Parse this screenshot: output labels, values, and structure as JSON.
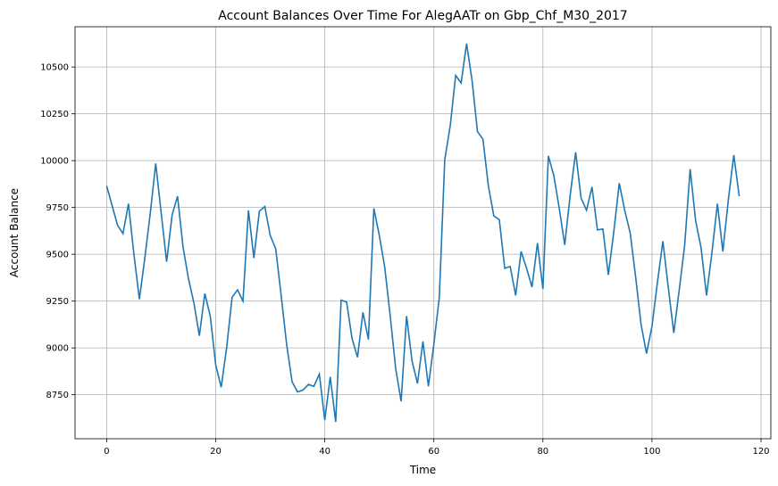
{
  "chart_data": {
    "type": "line",
    "title": "Account Balances Over Time For AlegAATr on Gbp_Chf_M30_2017",
    "xlabel": "Time",
    "ylabel": "Account Balance",
    "xlim": [
      -5.8,
      121.8
    ],
    "ylim": [
      8515,
      10715
    ],
    "xticks": [
      0,
      20,
      40,
      60,
      80,
      100,
      120
    ],
    "yticks": [
      8750,
      9000,
      9250,
      9500,
      9750,
      10000,
      10250,
      10500
    ],
    "grid": true,
    "line_color": "#1f77b4",
    "series": [
      {
        "values": [
          9865,
          9760,
          9655,
          9610,
          9770,
          9500,
          9260,
          9480,
          9720,
          9985,
          9720,
          9460,
          9710,
          9810,
          9540,
          9370,
          9240,
          9065,
          9290,
          9170,
          8910,
          8790,
          9000,
          9270,
          9310,
          9250,
          9735,
          9480,
          9730,
          9755,
          9600,
          9530,
          9280,
          9020,
          8820,
          8765,
          8775,
          8805,
          8795,
          8860,
          8615,
          8845,
          8605,
          9255,
          9245,
          9050,
          8950,
          9190,
          9045,
          9745,
          9600,
          9430,
          9170,
          8890,
          8715,
          9170,
          8930,
          8810,
          9035,
          8795,
          9020,
          9270,
          10005,
          10185,
          10455,
          10415,
          10625,
          10430,
          10155,
          10115,
          9865,
          9705,
          9685,
          9425,
          9435,
          9280,
          9515,
          9425,
          9325,
          9560,
          9315,
          10025,
          9920,
          9745,
          9550,
          9815,
          10045,
          9800,
          9735,
          9860,
          9630,
          9635,
          9390,
          9620,
          9880,
          9735,
          9615,
          9380,
          9125,
          8970,
          9115,
          9350,
          9570,
          9320,
          9080,
          9310,
          9550,
          9955,
          9680,
          9535,
          9280,
          9510,
          9770,
          9515,
          9790,
          10030,
          9810
        ]
      }
    ]
  }
}
